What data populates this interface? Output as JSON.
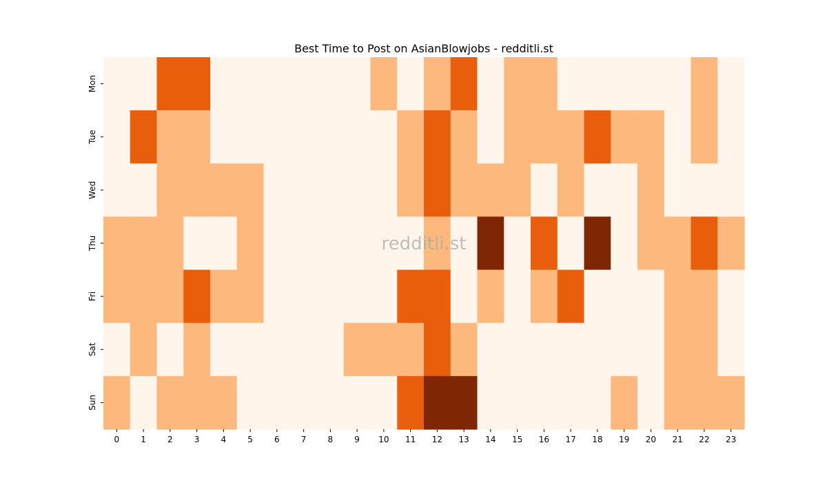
{
  "chart_data": {
    "type": "heatmap",
    "title": "Best Time to Post on AsianBlowjobs - redditli.st",
    "watermark": "redditli.st",
    "x_ticks": [
      "0",
      "1",
      "2",
      "3",
      "4",
      "5",
      "6",
      "7",
      "8",
      "9",
      "10",
      "11",
      "12",
      "13",
      "14",
      "15",
      "16",
      "17",
      "18",
      "19",
      "20",
      "21",
      "22",
      "23"
    ],
    "y_ticks": [
      "Mon",
      "Tue",
      "Wed",
      "Thu",
      "Fri",
      "Sat",
      "Sun"
    ],
    "value_levels": [
      0,
      1,
      2,
      3
    ],
    "colors": [
      "#fff5eb",
      "#fdb87d",
      "#e95e0d",
      "#7f2704"
    ],
    "matrix": [
      [
        0,
        0,
        2,
        2,
        0,
        0,
        0,
        0,
        0,
        0,
        1,
        0,
        1,
        2,
        0,
        1,
        1,
        0,
        0,
        0,
        0,
        0,
        1,
        0
      ],
      [
        0,
        2,
        1,
        1,
        0,
        0,
        0,
        0,
        0,
        0,
        0,
        1,
        2,
        1,
        0,
        1,
        1,
        1,
        2,
        1,
        1,
        0,
        1,
        0
      ],
      [
        0,
        0,
        1,
        1,
        1,
        1,
        0,
        0,
        0,
        0,
        0,
        1,
        2,
        1,
        1,
        1,
        0,
        1,
        0,
        0,
        1,
        0,
        0,
        0
      ],
      [
        1,
        1,
        1,
        0,
        0,
        1,
        0,
        0,
        0,
        0,
        0,
        0,
        1,
        0,
        3,
        0,
        2,
        0,
        3,
        0,
        1,
        1,
        2,
        1
      ],
      [
        1,
        1,
        1,
        2,
        1,
        1,
        0,
        0,
        0,
        0,
        0,
        2,
        2,
        0,
        1,
        0,
        1,
        2,
        0,
        0,
        0,
        1,
        1,
        0
      ],
      [
        0,
        1,
        0,
        1,
        0,
        0,
        0,
        0,
        0,
        1,
        1,
        1,
        2,
        1,
        0,
        0,
        0,
        0,
        0,
        0,
        0,
        1,
        1,
        0
      ],
      [
        1,
        0,
        1,
        1,
        1,
        0,
        0,
        0,
        0,
        0,
        0,
        2,
        3,
        3,
        0,
        0,
        0,
        0,
        0,
        1,
        0,
        1,
        1,
        1
      ]
    ]
  }
}
